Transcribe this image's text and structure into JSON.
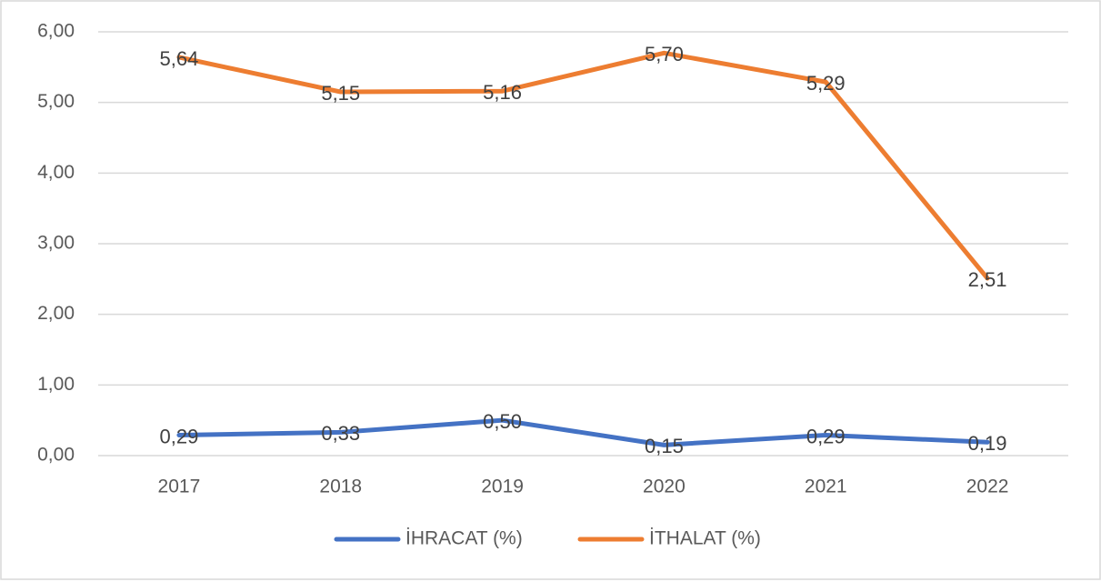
{
  "chart_data": {
    "type": "line",
    "categories": [
      "2017",
      "2018",
      "2019",
      "2020",
      "2021",
      "2022"
    ],
    "series": [
      {
        "name": "İHRACAT (%)",
        "color": "#4472c4",
        "values": [
          0.29,
          0.33,
          0.5,
          0.15,
          0.29,
          0.19
        ],
        "value_labels": [
          "0,29",
          "0,33",
          "0,50",
          "0,15",
          "0,29",
          "0,19"
        ]
      },
      {
        "name": "İTHALAT (%)",
        "color": "#ed7d31",
        "values": [
          5.64,
          5.15,
          5.16,
          5.7,
          5.29,
          2.51
        ],
        "value_labels": [
          "5,64",
          "5,15",
          "5,16",
          "5,70",
          "5,29",
          "2,51"
        ]
      }
    ],
    "ylim": [
      0,
      6
    ],
    "yticks": [
      {
        "value": 0,
        "label": "0,00"
      },
      {
        "value": 1,
        "label": "1,00"
      },
      {
        "value": 2,
        "label": "2,00"
      },
      {
        "value": 3,
        "label": "3,00"
      },
      {
        "value": 4,
        "label": "4,00"
      },
      {
        "value": 5,
        "label": "5,00"
      },
      {
        "value": 6,
        "label": "6,00"
      }
    ],
    "grid": true,
    "legend": "bottom"
  }
}
